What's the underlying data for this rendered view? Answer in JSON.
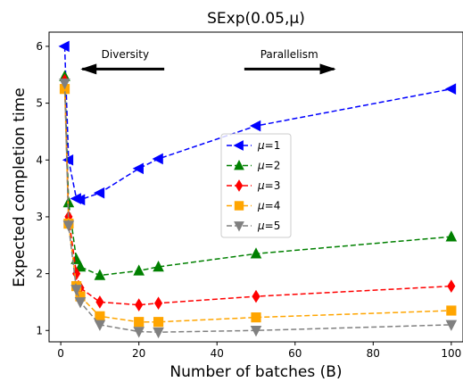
{
  "chart_data": {
    "type": "line",
    "title": "SExp(0.05,μ)",
    "xlabel": "Number of batches (B)",
    "ylabel": "Expected completion time",
    "xlim": [
      -3,
      103
    ],
    "ylim": [
      0.8,
      6.25
    ],
    "xticks": [
      0,
      20,
      40,
      60,
      80,
      100
    ],
    "yticks": [
      1,
      2,
      3,
      4,
      5,
      6
    ],
    "grid": false,
    "legend_position": "center",
    "x": [
      1,
      2,
      4,
      5,
      10,
      20,
      25,
      50,
      100
    ],
    "series": [
      {
        "name": "μ=1",
        "label_var": "μ",
        "label_val": "=1",
        "color": "#0000ff",
        "marker": "triangle-left",
        "values": [
          6.0,
          4.0,
          3.32,
          3.3,
          3.42,
          3.85,
          4.02,
          4.6,
          5.25
        ]
      },
      {
        "name": "μ=2",
        "label_var": "μ",
        "label_val": "=2",
        "color": "#008000",
        "marker": "triangle-up",
        "values": [
          5.47,
          3.25,
          2.25,
          2.12,
          1.97,
          2.05,
          2.12,
          2.35,
          2.65
        ]
      },
      {
        "name": "μ=3",
        "label_var": "μ",
        "label_val": "=3",
        "color": "#ff0000",
        "marker": "diamond",
        "values": [
          5.4,
          3.0,
          2.0,
          1.75,
          1.5,
          1.45,
          1.48,
          1.6,
          1.78
        ]
      },
      {
        "name": "μ=4",
        "label_var": "μ",
        "label_val": "=4",
        "color": "#ffa500",
        "marker": "square",
        "values": [
          5.25,
          2.88,
          1.78,
          1.6,
          1.25,
          1.15,
          1.15,
          1.23,
          1.35
        ]
      },
      {
        "name": "μ=5",
        "label_var": "μ",
        "label_val": "=5",
        "color": "#808080",
        "marker": "triangle-down",
        "values": [
          5.35,
          2.85,
          1.72,
          1.5,
          1.1,
          0.98,
          0.97,
          1.0,
          1.1
        ]
      }
    ],
    "annotations": [
      {
        "text": "Diversity",
        "direction": "left"
      },
      {
        "text": "Parallelism",
        "direction": "right"
      }
    ]
  }
}
